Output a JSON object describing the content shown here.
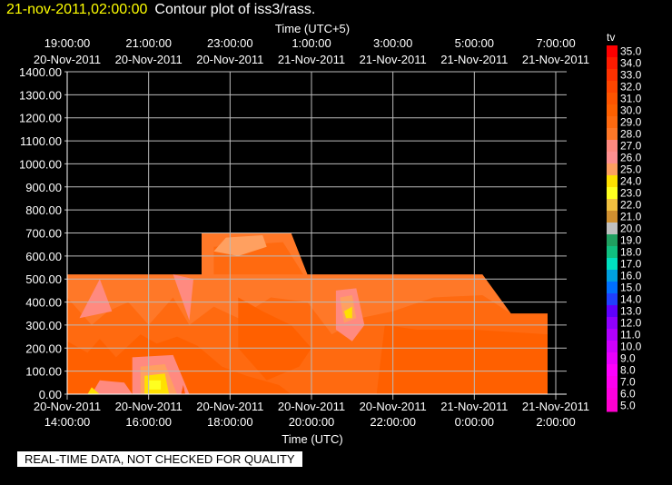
{
  "header": {
    "timestamp": "21-nov-2011,02:00:00",
    "title": "Contour plot of iss3/rass."
  },
  "notice": "REAL-TIME DATA, NOT CHECKED FOR QUALITY",
  "chart_data": {
    "type": "heatmap",
    "title": "Contour plot of iss3/rass.",
    "x_top_label": "Time (UTC+5)",
    "x_bottom_label": "Time (UTC)",
    "ylim": [
      0,
      1400
    ],
    "y_ticks": [
      "0.00",
      "100.00",
      "200.00",
      "300.00",
      "400.00",
      "500.00",
      "600.00",
      "700.00",
      "800.00",
      "900.00",
      "1000.00",
      "1100.00",
      "1200.00",
      "1300.00",
      "1400.00"
    ],
    "x_bottom_ticks": [
      {
        "date": "20-Nov-2011",
        "time": "14:00:00"
      },
      {
        "date": "20-Nov-2011",
        "time": "16:00:00"
      },
      {
        "date": "20-Nov-2011",
        "time": "18:00:00"
      },
      {
        "date": "20-Nov-2011",
        "time": "20:00:00"
      },
      {
        "date": "20-Nov-2011",
        "time": "22:00:00"
      },
      {
        "date": "21-Nov-2011",
        "time": "0:00:00"
      },
      {
        "date": "21-Nov-2011",
        "time": "2:00:00"
      }
    ],
    "x_top_ticks": [
      {
        "time": "19:00:00",
        "date": "20-Nov-2011"
      },
      {
        "time": "21:00:00",
        "date": "20-Nov-2011"
      },
      {
        "time": "23:00:00",
        "date": "20-Nov-2011"
      },
      {
        "time": "1:00:00",
        "date": "21-Nov-2011"
      },
      {
        "time": "3:00:00",
        "date": "21-Nov-2011"
      },
      {
        "time": "5:00:00",
        "date": "21-Nov-2011"
      },
      {
        "time": "7:00:00",
        "date": "21-Nov-2011"
      }
    ],
    "colorbar": {
      "label": "tv",
      "levels": [
        "35.0",
        "34.0",
        "33.0",
        "32.0",
        "31.0",
        "30.0",
        "29.0",
        "28.0",
        "27.0",
        "26.0",
        "25.0",
        "24.0",
        "23.0",
        "22.0",
        "21.0",
        "20.0",
        "19.0",
        "18.0",
        "17.0",
        "16.0",
        "15.0",
        "14.0",
        "13.0",
        "12.0",
        "11.0",
        "10.0",
        "9.0",
        "8.0",
        "7.0",
        "6.0",
        "5.0"
      ],
      "colors": [
        "#ff0000",
        "#ff1c00",
        "#ff3200",
        "#ff4600",
        "#ff5500",
        "#ff6000",
        "#ff6a10",
        "#ff7828",
        "#ff8a80",
        "#ff9090",
        "#ffa060",
        "#ffe000",
        "#ffff20",
        "#f0c040",
        "#d09030",
        "#c0c0c0",
        "#20a060",
        "#10c080",
        "#00e0c0",
        "#00a0e0",
        "#0070ff",
        "#2040ff",
        "#6000ff",
        "#9000ff",
        "#b000ff",
        "#d000ff",
        "#e800ff",
        "#ff00ff",
        "#ff00f0",
        "#ff00e0",
        "#ff00d0"
      ]
    },
    "grid": true,
    "regions": [
      {
        "level": "28.0",
        "points": [
          [
            14.0,
            0
          ],
          [
            14.0,
            520
          ],
          [
            17.3,
            520
          ],
          [
            17.3,
            700
          ],
          [
            19.5,
            700
          ],
          [
            19.9,
            520
          ],
          [
            24.2,
            520
          ],
          [
            24.9,
            350
          ],
          [
            25.8,
            350
          ],
          [
            25.8,
            0
          ]
        ]
      },
      {
        "level": "29.0",
        "points": [
          [
            14.0,
            0
          ],
          [
            14.0,
            420
          ],
          [
            14.6,
            300
          ],
          [
            15.0,
            360
          ],
          [
            15.5,
            400
          ],
          [
            16.0,
            300
          ],
          [
            16.6,
            420
          ],
          [
            17.0,
            300
          ],
          [
            17.6,
            380
          ],
          [
            18.2,
            330
          ],
          [
            19.0,
            420
          ],
          [
            19.9,
            400
          ],
          [
            20.5,
            260
          ],
          [
            21.2,
            330
          ],
          [
            22.0,
            360
          ],
          [
            23.0,
            420
          ],
          [
            24.2,
            430
          ],
          [
            24.9,
            350
          ],
          [
            25.8,
            350
          ],
          [
            25.8,
            0
          ]
        ]
      },
      {
        "level": "29.0",
        "points": [
          [
            17.6,
            520
          ],
          [
            17.6,
            640
          ],
          [
            19.3,
            660
          ],
          [
            19.8,
            520
          ]
        ]
      },
      {
        "level": "30.0",
        "points": [
          [
            14.0,
            0
          ],
          [
            14.0,
            230
          ],
          [
            14.5,
            180
          ],
          [
            14.8,
            240
          ],
          [
            15.2,
            160
          ],
          [
            15.8,
            260
          ],
          [
            16.2,
            220
          ],
          [
            16.7,
            250
          ],
          [
            17.2,
            210
          ],
          [
            17.8,
            120
          ],
          [
            18.4,
            80
          ],
          [
            19.2,
            40
          ],
          [
            19.5,
            0
          ]
        ]
      },
      {
        "level": "30.0",
        "points": [
          [
            18.2,
            420
          ],
          [
            18.8,
            360
          ],
          [
            19.5,
            300
          ],
          [
            20.0,
            200
          ],
          [
            19.7,
            120
          ],
          [
            18.9,
            60
          ],
          [
            18.2,
            200
          ]
        ]
      },
      {
        "level": "30.0",
        "points": [
          [
            21.8,
            300
          ],
          [
            22.6,
            280
          ],
          [
            24.0,
            280
          ],
          [
            25.8,
            260
          ],
          [
            25.8,
            0
          ],
          [
            21.6,
            0
          ]
        ]
      },
      {
        "level": "27.0",
        "points": [
          [
            14.6,
            0
          ],
          [
            14.8,
            60
          ],
          [
            15.4,
            50
          ],
          [
            15.6,
            0
          ]
        ]
      },
      {
        "level": "27.0",
        "points": [
          [
            15.6,
            0
          ],
          [
            15.6,
            160
          ],
          [
            16.6,
            170
          ],
          [
            17.0,
            0
          ]
        ]
      },
      {
        "level": "27.0",
        "points": [
          [
            20.6,
            450
          ],
          [
            21.1,
            460
          ],
          [
            21.3,
            300
          ],
          [
            21.0,
            230
          ],
          [
            20.6,
            280
          ]
        ]
      },
      {
        "level": "27.0",
        "points": [
          [
            14.3,
            330
          ],
          [
            14.8,
            500
          ],
          [
            15.1,
            360
          ]
        ]
      },
      {
        "level": "27.0",
        "points": [
          [
            16.6,
            520
          ],
          [
            17.1,
            500
          ],
          [
            17.0,
            320
          ]
        ]
      },
      {
        "level": "25.0",
        "points": [
          [
            15.8,
            0
          ],
          [
            15.8,
            120
          ],
          [
            16.4,
            130
          ],
          [
            16.7,
            0
          ]
        ]
      },
      {
        "level": "25.0",
        "points": [
          [
            20.7,
            420
          ],
          [
            21.0,
            430
          ],
          [
            21.1,
            330
          ],
          [
            20.8,
            310
          ]
        ]
      },
      {
        "level": "25.0",
        "points": [
          [
            17.6,
            620
          ],
          [
            17.9,
            680
          ],
          [
            18.8,
            690
          ],
          [
            18.9,
            640
          ],
          [
            18.2,
            600
          ]
        ]
      },
      {
        "level": "24.0",
        "points": [
          [
            15.9,
            0
          ],
          [
            15.9,
            80
          ],
          [
            16.4,
            90
          ],
          [
            16.5,
            0
          ]
        ]
      },
      {
        "level": "24.0",
        "points": [
          [
            20.8,
            360
          ],
          [
            21.0,
            380
          ],
          [
            21.0,
            330
          ],
          [
            20.85,
            330
          ]
        ]
      },
      {
        "level": "24.0",
        "points": [
          [
            14.5,
            0
          ],
          [
            14.6,
            30
          ],
          [
            14.8,
            0
          ]
        ]
      },
      {
        "level": "23.0",
        "points": [
          [
            16.0,
            20
          ],
          [
            16.0,
            60
          ],
          [
            16.3,
            60
          ],
          [
            16.3,
            20
          ]
        ]
      },
      {
        "level": "31.0",
        "points": [
          [
            16.8,
            0
          ],
          [
            16.85,
            40
          ],
          [
            16.9,
            0
          ]
        ]
      }
    ]
  }
}
